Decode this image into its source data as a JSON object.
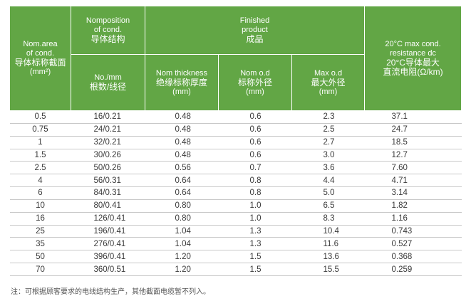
{
  "header": {
    "nom_area": [
      "Nom.area",
      "of cond.",
      "导体标称截面",
      "(mm²)"
    ],
    "composition": [
      "Nomposition",
      "of cond.",
      "导体结构"
    ],
    "finished": [
      "Finished",
      "product",
      "成品"
    ],
    "resistance": [
      "20°C max cond.",
      "resistance dc",
      "20°C导体最大",
      "直流电阻(Ω/km)"
    ],
    "no_mm": [
      "No./mm",
      "根数/线径"
    ],
    "nom_thickness": [
      "Nom thickness",
      "绝缘标称厚度",
      "(mm)"
    ],
    "nom_od": [
      "Nom o.d",
      "标称外径",
      "(mm)"
    ],
    "max_od": [
      "Max o.d",
      "最大外径",
      "(mm)"
    ]
  },
  "rows": [
    [
      "0.5",
      "16/0.21",
      "0.48",
      "0.6",
      "2.3",
      "37.1"
    ],
    [
      "0.75",
      "24/0.21",
      "0.48",
      "0.6",
      "2.5",
      "24.7"
    ],
    [
      "1",
      "32/0.21",
      "0.48",
      "0.6",
      "2.7",
      "18.5"
    ],
    [
      "1.5",
      "30/0.26",
      "0.48",
      "0.6",
      "3.0",
      "12.7"
    ],
    [
      "2.5",
      "50/0.26",
      "0.56",
      "0.7",
      "3.6",
      "7.60"
    ],
    [
      "4",
      "56/0.31",
      "0.64",
      "0.8",
      "4.4",
      "4.71"
    ],
    [
      "6",
      "84/0.31",
      "0.64",
      "0.8",
      "5.0",
      "3.14"
    ],
    [
      "10",
      "80/0.41",
      "0.80",
      "1.0",
      "6.5",
      "1.82"
    ],
    [
      "16",
      "126/0.41",
      "0.80",
      "1.0",
      "8.3",
      "1.16"
    ],
    [
      "25",
      "196/0.41",
      "1.04",
      "1.3",
      "10.4",
      "0.743"
    ],
    [
      "35",
      "276/0.41",
      "1.04",
      "1.3",
      "11.6",
      "0.527"
    ],
    [
      "50",
      "396/0.41",
      "1.20",
      "1.5",
      "13.6",
      "0.368"
    ],
    [
      "70",
      "360/0.51",
      "1.20",
      "1.5",
      "15.5",
      "0.259"
    ]
  ],
  "note": "注：可根据顾客要求的电线结构生产，其他截面电缆暂不列入。",
  "colors": {
    "header_green": "#62a645",
    "rule_gray": "#c9c9c9",
    "text": "#3a3a3a"
  }
}
